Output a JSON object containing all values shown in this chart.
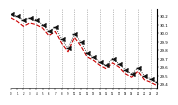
{
  "background_color": "#ffffff",
  "grid_color": "#888888",
  "ylim": [
    29.35,
    30.28
  ],
  "xlim": [
    0,
    23
  ],
  "y_ticks": [
    29.4,
    29.5,
    29.6,
    29.7,
    29.8,
    29.9,
    30.0,
    30.1,
    30.2
  ],
  "hours": [
    0,
    1,
    2,
    3,
    4,
    5,
    6,
    7,
    8,
    9,
    10,
    11,
    12,
    13,
    14,
    15,
    16,
    17,
    18,
    19,
    20,
    21,
    22,
    23
  ],
  "pressure_red": [
    30.18,
    30.14,
    30.08,
    30.12,
    30.1,
    30.06,
    29.97,
    30.02,
    29.88,
    29.78,
    29.95,
    29.85,
    29.72,
    29.68,
    29.62,
    29.58,
    29.65,
    29.6,
    29.52,
    29.48,
    29.55,
    29.45,
    29.42,
    29.38
  ],
  "pressure_black": [
    30.22,
    30.2,
    30.15,
    30.18,
    30.16,
    30.1,
    30.02,
    30.07,
    29.93,
    29.82,
    29.99,
    29.9,
    29.76,
    29.72,
    29.66,
    29.62,
    29.7,
    29.64,
    29.57,
    29.52,
    29.59,
    29.5,
    29.46,
    29.42
  ],
  "red_color": "#cc0000",
  "black_color": "#111111",
  "vgrid_positions": [
    2,
    4,
    6,
    8,
    10,
    12,
    14,
    16,
    18,
    20,
    22
  ]
}
